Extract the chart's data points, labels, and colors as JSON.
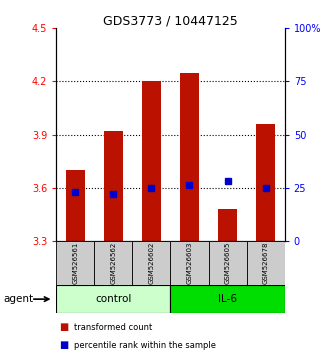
{
  "title": "GDS3773 / 10447125",
  "samples": [
    "GSM526561",
    "GSM526562",
    "GSM526602",
    "GSM526603",
    "GSM526605",
    "GSM526678"
  ],
  "groups": [
    "control",
    "control",
    "control",
    "IL-6",
    "IL-6",
    "IL-6"
  ],
  "transformed_counts": [
    3.7,
    3.92,
    4.2,
    4.25,
    3.48,
    3.96
  ],
  "percentile_ranks": [
    23,
    22,
    25,
    26,
    28,
    25
  ],
  "bar_bottom": 3.3,
  "ylim_left": [
    3.3,
    4.5
  ],
  "ylim_right": [
    0,
    100
  ],
  "yticks_left": [
    3.3,
    3.6,
    3.9,
    4.2,
    4.5
  ],
  "ytick_labels_left": [
    "3.3",
    "3.6",
    "3.9",
    "4.2",
    "4.5"
  ],
  "yticks_right": [
    0,
    25,
    50,
    75,
    100
  ],
  "ytick_labels_right": [
    "0",
    "25",
    "50",
    "75",
    "100%"
  ],
  "bar_color": "#bb1100",
  "dot_color": "#0000cc",
  "control_color": "#ccffcc",
  "il6_color": "#00dd00",
  "sample_box_color": "#cccccc",
  "agent_label": "agent",
  "group_names": [
    "control",
    "IL-6"
  ],
  "legend_items": [
    "transformed count",
    "percentile rank within the sample"
  ],
  "bar_width": 0.5,
  "dot_size": 25,
  "grid_linestyle": "dotted",
  "grid_linewidth": 0.8
}
